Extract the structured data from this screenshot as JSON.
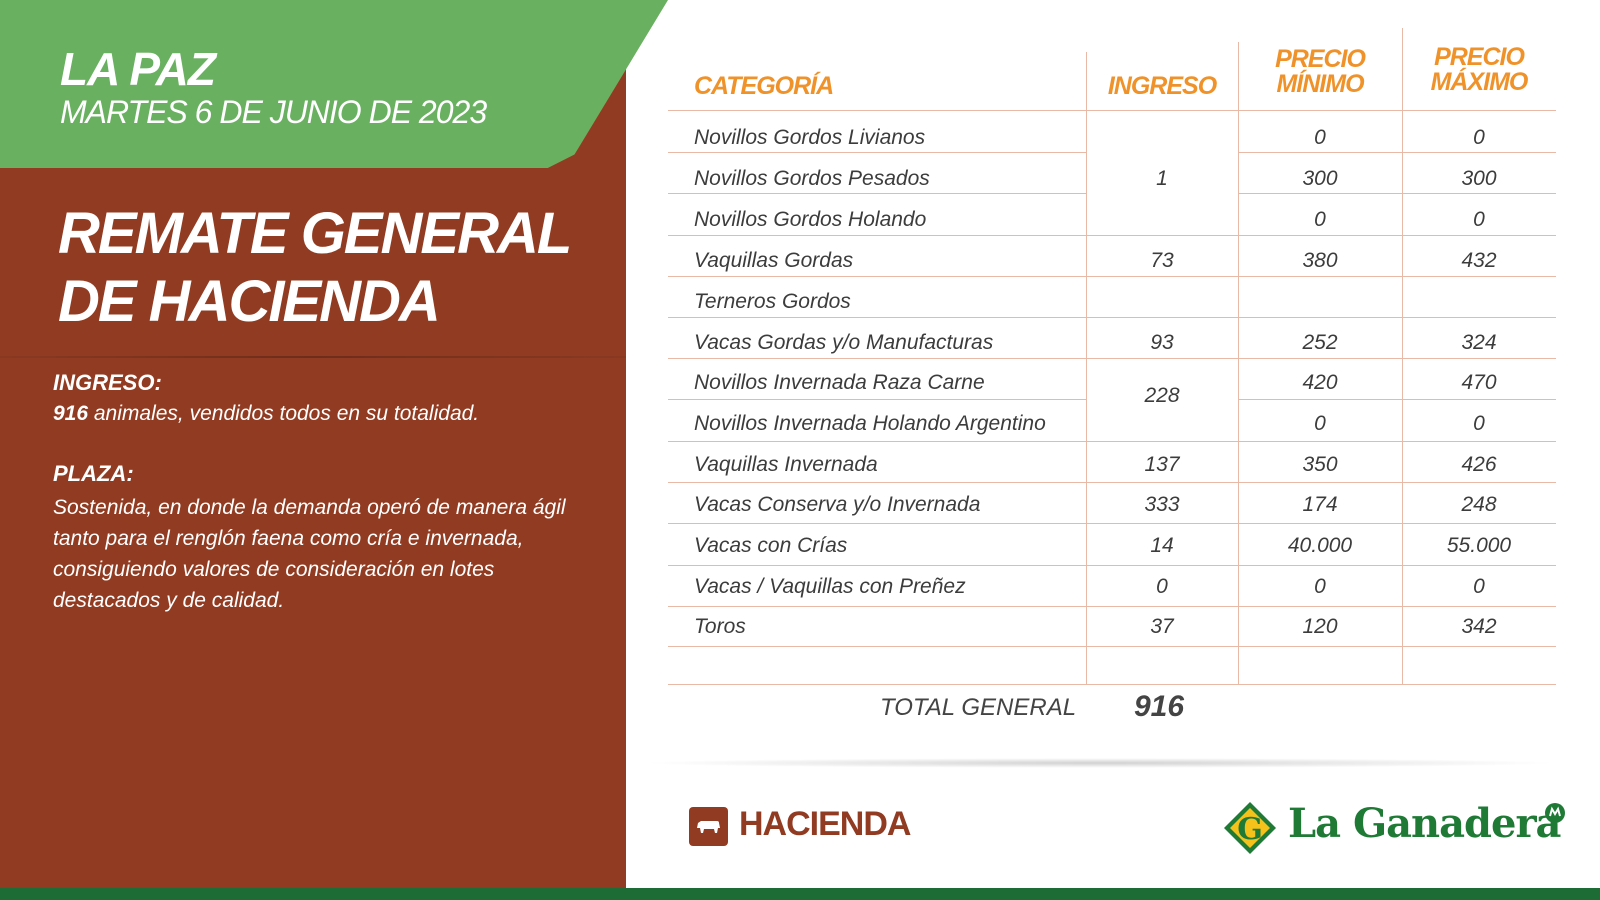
{
  "header": {
    "place": "LA PAZ",
    "date": "MARTES 6 DE JUNIO DE 2023",
    "title_line1": "REMATE GENERAL",
    "title_line2": "DE HACIENDA"
  },
  "summary": {
    "ingreso_label": "INGRESO:",
    "ingreso_count": "916",
    "ingreso_text": " animales, vendidos todos en su totalidad.",
    "plaza_label": "PLAZA:",
    "plaza_text": "Sostenida, en donde la demanda operó de manera ágil tanto para el renglón faena como cría e invernada, consiguiendo valores de consideración en lotes destacados y de calidad."
  },
  "table": {
    "headers": {
      "categoria": "CATEGORÍA",
      "ingreso": "INGRESO",
      "precio_min_1": "PRECIO",
      "precio_min_2": "MÍNIMO",
      "precio_max_1": "PRECIO",
      "precio_max_2": "MÁXIMO"
    },
    "rows": [
      {
        "categoria": "Novillos Gordos Livianos",
        "minimo": "0",
        "maximo": "0"
      },
      {
        "categoria": "Novillos Gordos Pesados",
        "minimo": "300",
        "maximo": "300"
      },
      {
        "categoria": "Novillos Gordos Holando",
        "minimo": "0",
        "maximo": "0"
      },
      {
        "categoria": "Vaquillas Gordas",
        "ingreso": "73",
        "minimo": "380",
        "maximo": "432"
      },
      {
        "categoria": "Terneros Gordos",
        "ingreso": "",
        "minimo": "",
        "maximo": ""
      },
      {
        "categoria": "Vacas Gordas y/o Manufacturas",
        "ingreso": "93",
        "minimo": "252",
        "maximo": "324"
      },
      {
        "categoria": "Novillos Invernada Raza Carne",
        "minimo": "420",
        "maximo": "470"
      },
      {
        "categoria": "Novillos Invernada Holando Argentino",
        "minimo": "0",
        "maximo": "0"
      },
      {
        "categoria": "Vaquillas Invernada",
        "ingreso": "137",
        "minimo": "350",
        "maximo": "426"
      },
      {
        "categoria": "Vacas Conserva y/o Invernada",
        "ingreso": "333",
        "minimo": "174",
        "maximo": "248"
      },
      {
        "categoria": "Vacas con Crías",
        "ingreso": "14",
        "minimo": "40.000",
        "maximo": "55.000"
      },
      {
        "categoria": "Vacas / Vaquillas con Preñez",
        "ingreso": "0",
        "minimo": "0",
        "maximo": "0"
      },
      {
        "categoria": "Toros",
        "ingreso": "37",
        "minimo": "120",
        "maximo": "342"
      }
    ],
    "group_ingreso_novillos_gordos": "1",
    "group_ingreso_novillos_invernada": "228",
    "total_label": "TOTAL GENERAL",
    "total_value": "916"
  },
  "footer": {
    "section_label": "HACIENDA",
    "brand": "La Ganadera",
    "logo_letter": "G"
  },
  "colors": {
    "green": "#6ab061",
    "brown": "#913c22",
    "orange": "#f0922a",
    "dark_green": "#1d6b35"
  }
}
